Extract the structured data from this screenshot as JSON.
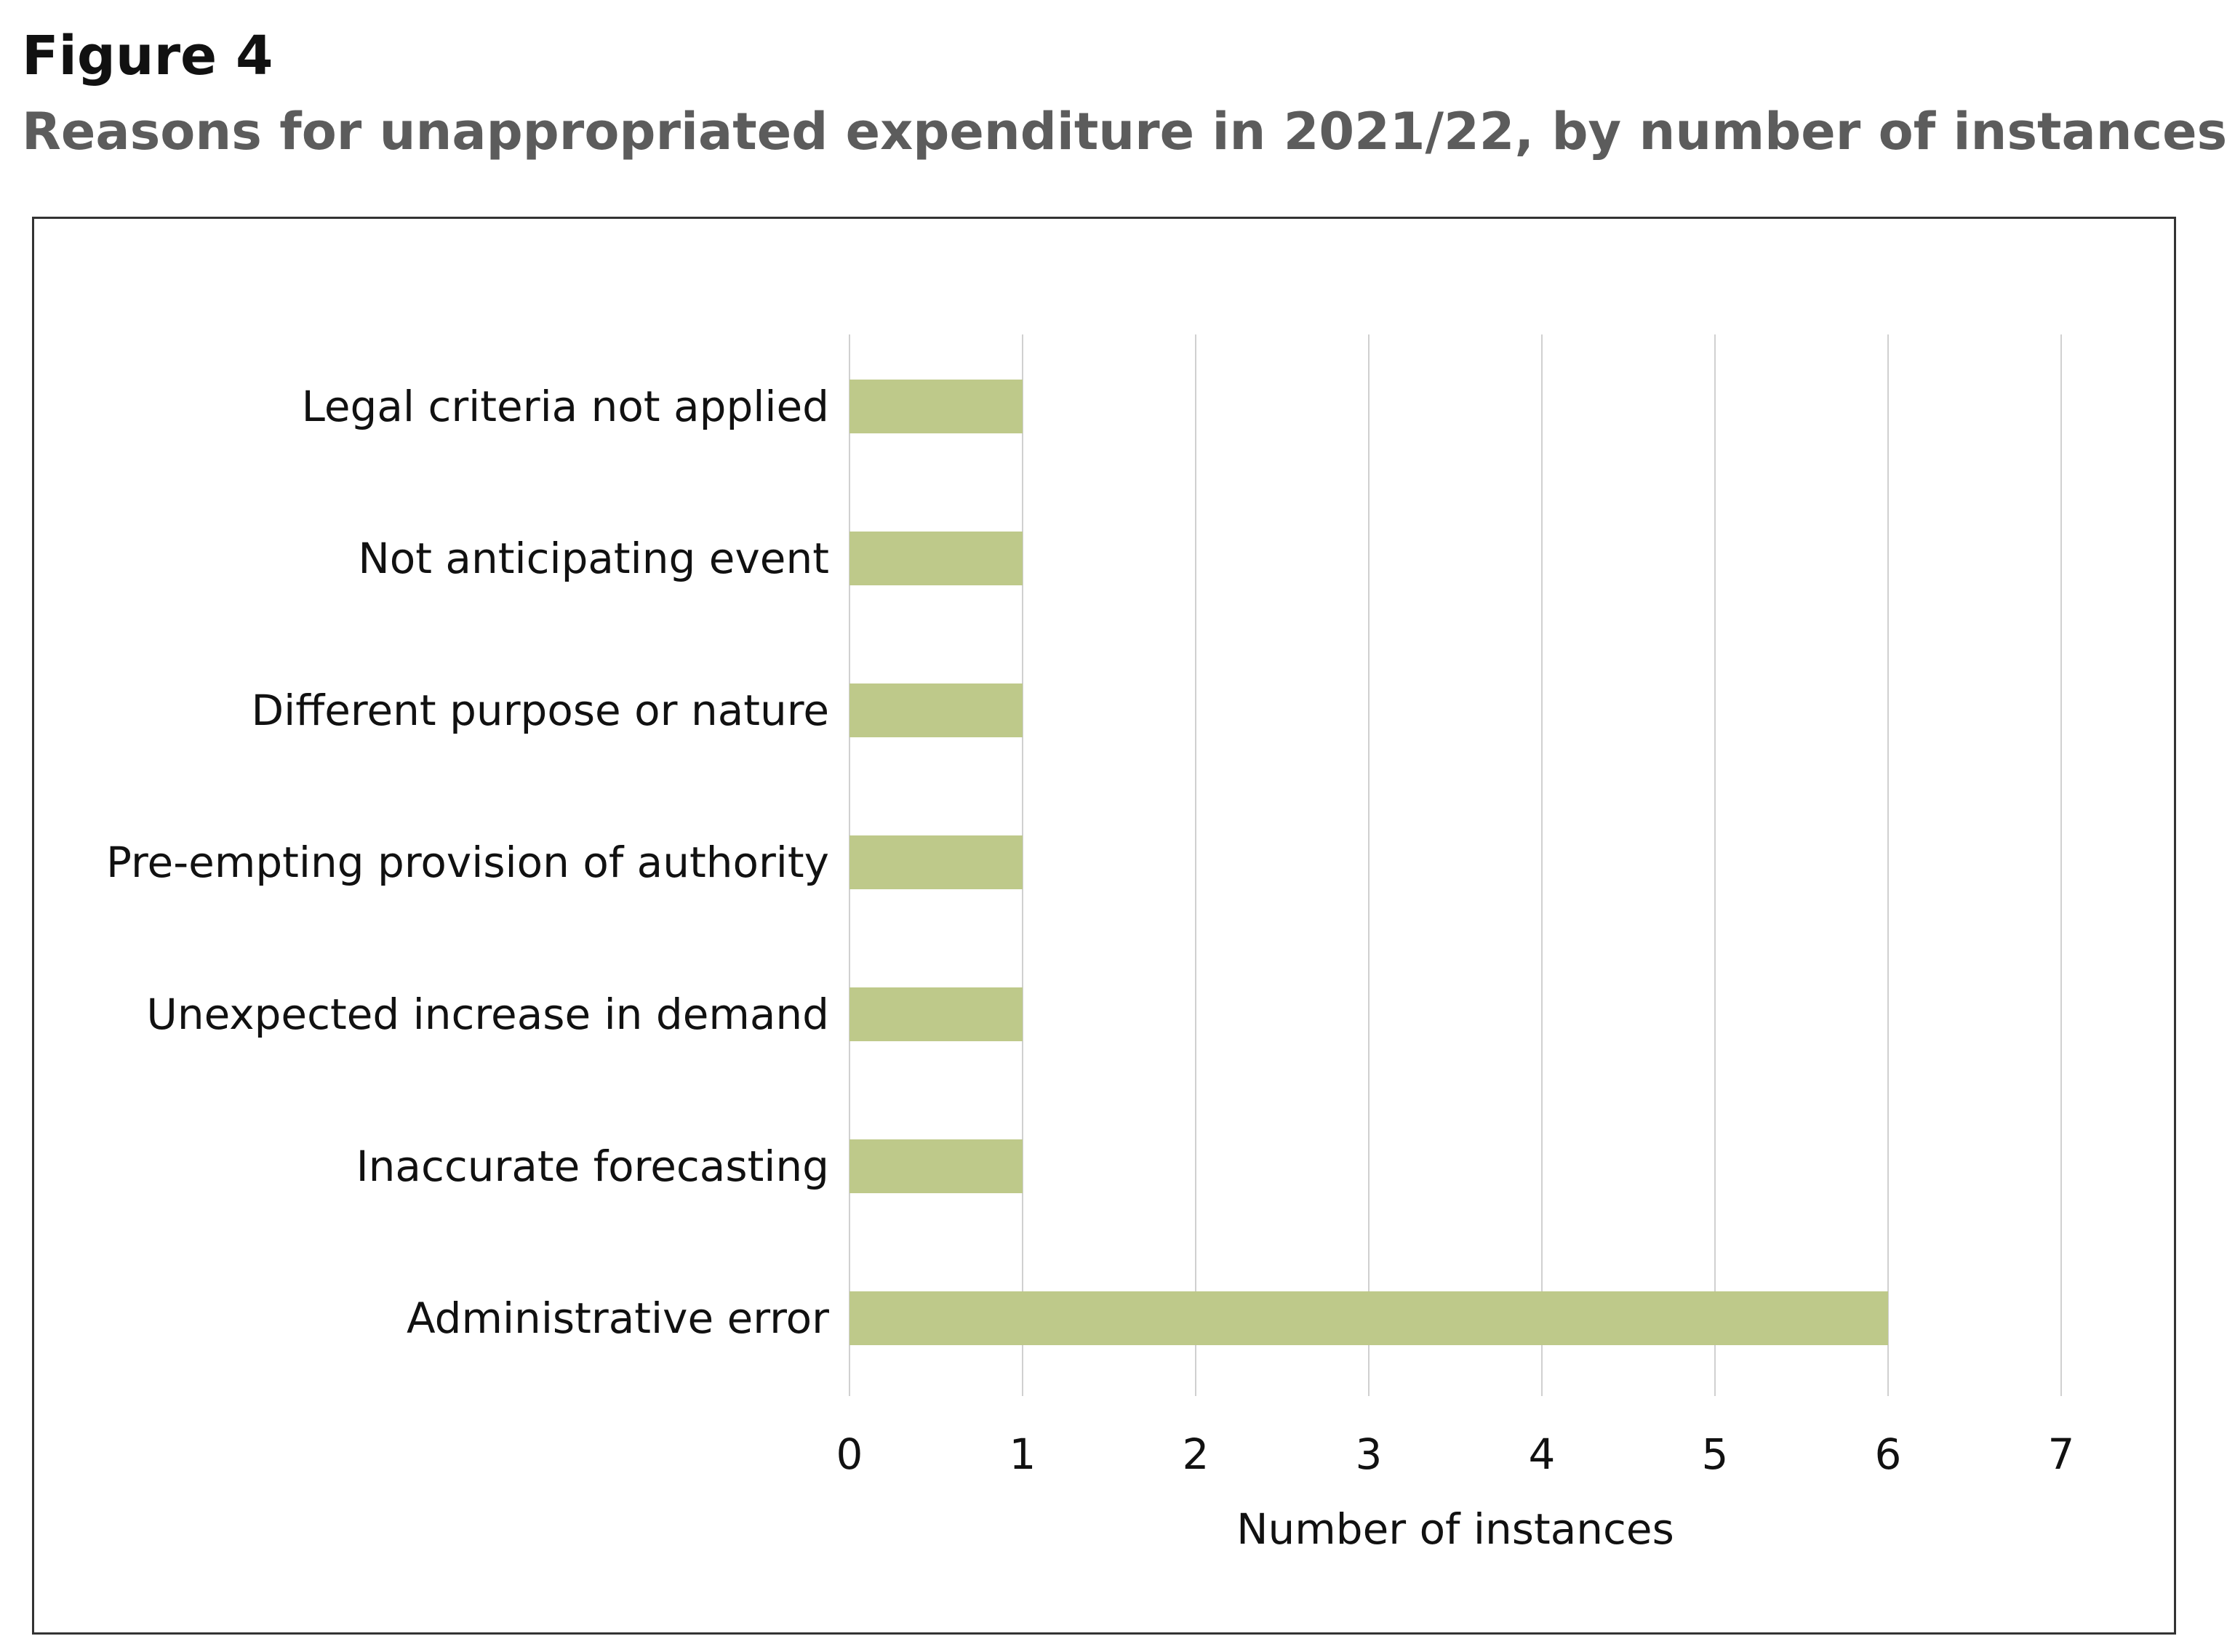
{
  "figure": {
    "label": "Figure 4",
    "title": "Reasons for unappropriated expenditure in 2021/22, by number of instances"
  },
  "chart_data": {
    "type": "bar",
    "orientation": "horizontal",
    "categories": [
      "Legal criteria not applied",
      "Not anticipating event",
      "Different purpose or nature",
      "Pre-empting provision of authority",
      "Unexpected increase in demand",
      "Inaccurate forecasting",
      "Administrative error"
    ],
    "values": [
      1,
      1,
      1,
      1,
      1,
      1,
      6
    ],
    "xlabel": "Number of instances",
    "ylabel": "",
    "xlim": [
      0,
      7
    ],
    "xticks": [
      "0",
      "1",
      "2",
      "3",
      "4",
      "5",
      "6",
      "7"
    ],
    "grid": "vertical",
    "legend": "none",
    "colors": {
      "bar": "#bec98a",
      "grid": "#d0d0d0",
      "text": "#111111"
    }
  }
}
